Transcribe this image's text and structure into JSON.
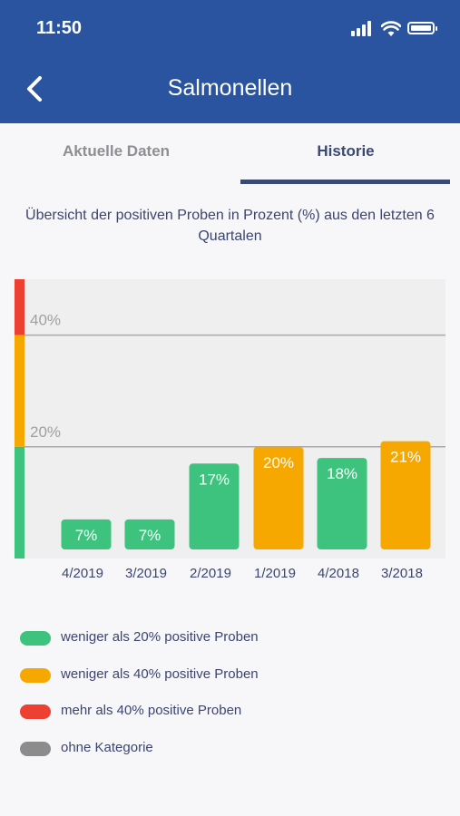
{
  "status_bar": {
    "time": "11:50"
  },
  "nav": {
    "title": "Salmonellen"
  },
  "tabs": [
    {
      "label": "Aktuelle Daten",
      "active": false
    },
    {
      "label": "Historie",
      "active": true
    }
  ],
  "subtitle": "Übersicht der positiven Proben in Prozent (%) aus den letzten 6 Quartalen",
  "colors": {
    "header": "#2a53a0",
    "green": "#3ec37e",
    "orange": "#f6a800",
    "red": "#ee3f33",
    "grey": "#8c8c8c"
  },
  "chart_data": {
    "type": "bar",
    "categories": [
      "4/2019",
      "3/2019",
      "2/2019",
      "1/2019",
      "4/2018",
      "3/2018"
    ],
    "values": [
      7,
      7,
      17,
      20,
      18,
      21
    ],
    "value_labels": [
      "7%",
      "7%",
      "17%",
      "20%",
      "18%",
      "21%"
    ],
    "bar_colors": [
      "green",
      "green",
      "green",
      "orange",
      "green",
      "orange"
    ],
    "threshold_labels": [
      "40%",
      "20%"
    ],
    "thresholds": [
      40,
      20
    ],
    "ylim": [
      0,
      50
    ],
    "grid": true
  },
  "legend": [
    {
      "color": "green",
      "label": "weniger als 20% positive Proben"
    },
    {
      "color": "orange",
      "label": "weniger als 40% positive Proben"
    },
    {
      "color": "red",
      "label": "mehr als 40% positive Proben"
    },
    {
      "color": "grey",
      "label": "ohne Kategorie"
    }
  ]
}
